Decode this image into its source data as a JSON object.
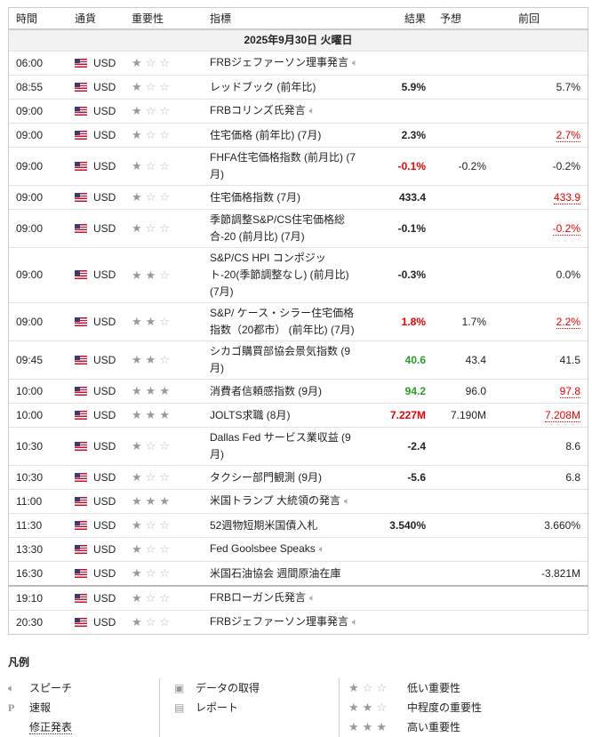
{
  "header": {
    "time": "時間",
    "currency": "通貨",
    "importance": "重要性",
    "indicator": "指標",
    "actual": "結果",
    "forecast": "予想",
    "previous": "前回"
  },
  "date": "2025年9月30日 火曜日",
  "colors": {
    "negative": "#e00000",
    "positive": "#2a9a2a"
  },
  "rows": [
    {
      "time": "06:00",
      "cur": "USD",
      "stars": 1,
      "name": "FRBジェファーソン理事発言",
      "speech": true,
      "actual": "",
      "ac": "",
      "forecast": "",
      "previous": "",
      "pc": ""
    },
    {
      "time": "08:55",
      "cur": "USD",
      "stars": 1,
      "name": "レッドブック (前年比)",
      "actual": "5.9%",
      "ac": "",
      "forecast": "",
      "previous": "5.7%",
      "pc": ""
    },
    {
      "time": "09:00",
      "cur": "USD",
      "stars": 1,
      "name": "FRBコリンズ氏発言",
      "speech": true,
      "actual": "",
      "ac": "",
      "forecast": "",
      "previous": "",
      "pc": ""
    },
    {
      "time": "09:00",
      "cur": "USD",
      "stars": 1,
      "name": "住宅価格 (前年比) (7月)",
      "actual": "2.3%",
      "ac": "",
      "forecast": "",
      "previous": "2.7%",
      "pc": "rev"
    },
    {
      "time": "09:00",
      "cur": "USD",
      "stars": 1,
      "name": "FHFA住宅価格指数 (前月比) (7月)",
      "actual": "-0.1%",
      "ac": "red",
      "forecast": "-0.2%",
      "previous": "-0.2%",
      "pc": ""
    },
    {
      "time": "09:00",
      "cur": "USD",
      "stars": 1,
      "name": "住宅価格指数 (7月)",
      "actual": "433.4",
      "ac": "",
      "forecast": "",
      "previous": "433.9",
      "pc": "rev"
    },
    {
      "time": "09:00",
      "cur": "USD",
      "stars": 1,
      "name": "季節調整S&P/CS住宅価格総合‐20 (前月比) (7月)",
      "actual": "-0.1%",
      "ac": "",
      "forecast": "",
      "previous": "-0.2%",
      "pc": "rev"
    },
    {
      "time": "09:00",
      "cur": "USD",
      "stars": 2,
      "name": "S&P/CS HPI コンポジット-20(季節調整なし) (前月比) (7月)",
      "actual": "-0.3%",
      "ac": "",
      "forecast": "",
      "previous": "0.0%",
      "pc": ""
    },
    {
      "time": "09:00",
      "cur": "USD",
      "stars": 2,
      "name": "S&P/ ケース・シラー住宅価格指数（20都市） (前年比) (7月)",
      "actual": "1.8%",
      "ac": "red",
      "forecast": "1.7%",
      "previous": "2.2%",
      "pc": "rev"
    },
    {
      "time": "09:45",
      "cur": "USD",
      "stars": 2,
      "name": "シカゴ購買部協会景気指数 (9月)",
      "actual": "40.6",
      "ac": "green",
      "forecast": "43.4",
      "previous": "41.5",
      "pc": ""
    },
    {
      "time": "10:00",
      "cur": "USD",
      "stars": 3,
      "name": "消費者信頼感指数 (9月)",
      "actual": "94.2",
      "ac": "green",
      "forecast": "96.0",
      "previous": "97.8",
      "pc": "rev"
    },
    {
      "time": "10:00",
      "cur": "USD",
      "stars": 3,
      "name": "JOLTS求職 (8月)",
      "actual": "7.227M",
      "ac": "red",
      "forecast": "7.190M",
      "previous": "7.208M",
      "pc": "rev"
    },
    {
      "time": "10:30",
      "cur": "USD",
      "stars": 1,
      "name": "Dallas Fed サービス業収益 (9月)",
      "actual": "-2.4",
      "ac": "",
      "forecast": "",
      "previous": "8.6",
      "pc": ""
    },
    {
      "time": "10:30",
      "cur": "USD",
      "stars": 1,
      "name": "タクシー部門観測 (9月)",
      "actual": "-5.6",
      "ac": "",
      "forecast": "",
      "previous": "6.8",
      "pc": ""
    },
    {
      "time": "11:00",
      "cur": "USD",
      "stars": 3,
      "name": "米国トランプ 大統領の発言",
      "speech": true,
      "actual": "",
      "ac": "",
      "forecast": "",
      "previous": "",
      "pc": ""
    },
    {
      "time": "11:30",
      "cur": "USD",
      "stars": 1,
      "name": "52週物短期米国債入札",
      "actual": "3.540%",
      "ac": "",
      "forecast": "",
      "previous": "3.660%",
      "pc": ""
    },
    {
      "time": "13:30",
      "cur": "USD",
      "stars": 1,
      "name": "Fed Goolsbee Speaks",
      "speech": true,
      "actual": "",
      "ac": "",
      "forecast": "",
      "previous": "",
      "pc": ""
    },
    {
      "time": "16:30",
      "cur": "USD",
      "stars": 1,
      "name": "米国石油協会 週間原油在庫",
      "actual": "",
      "ac": "",
      "forecast": "",
      "previous": "-3.821M",
      "pc": ""
    },
    {
      "time": "19:10",
      "cur": "USD",
      "stars": 1,
      "name": "FRBローガン氏発言",
      "speech": true,
      "sep": true,
      "actual": "",
      "ac": "",
      "forecast": "",
      "previous": "",
      "pc": ""
    },
    {
      "time": "20:30",
      "cur": "USD",
      "stars": 1,
      "name": "FRBジェファーソン理事発言",
      "speech": true,
      "actual": "",
      "ac": "",
      "forecast": "",
      "previous": "",
      "pc": ""
    }
  ],
  "legend": {
    "title": "凡例",
    "speech": "スピーチ",
    "preliminary": "速報",
    "revised": "修正発表",
    "data": "データの取得",
    "report": "レポート",
    "low": "低い重要性",
    "medium": "中程度の重要性",
    "high": "高い重要性"
  }
}
